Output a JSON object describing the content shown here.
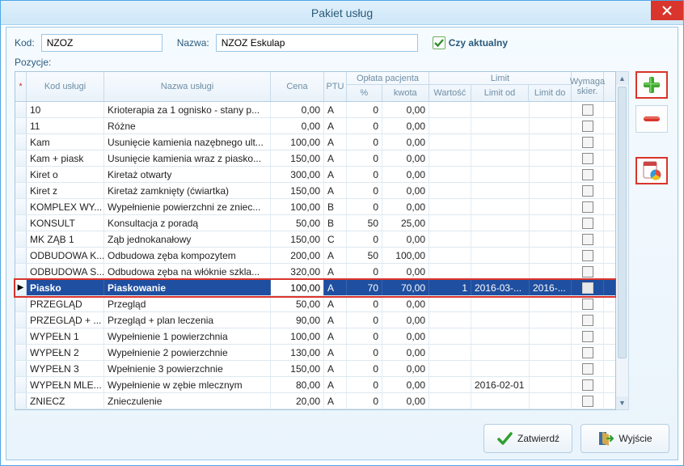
{
  "window": {
    "title": "Pakiet usług"
  },
  "form": {
    "kod_label": "Kod:",
    "kod_value": "NZOZ",
    "nazwa_label": "Nazwa:",
    "nazwa_value": "NZOZ Eskulap",
    "aktualny_label": "Czy aktualny",
    "aktualny_checked": true
  },
  "pozycje_label": "Pozycje:",
  "columns": {
    "kod": "Kod usługi",
    "nazwa": "Nazwa usługi",
    "cena": "Cena",
    "ptu": "PTU",
    "oplata": "Opłata pacjenta",
    "pct": "%",
    "kwota": "kwota",
    "limit": "Limit",
    "wartosc": "Wartość",
    "limit_od": "Limit od",
    "limit_do": "Limit do",
    "skier": "Wymaga skier."
  },
  "rows": [
    {
      "kod": "10",
      "nazwa": "Krioterapia za 1 ognisko - stany p...",
      "cena": "0,00",
      "ptu": "A",
      "pct": "0",
      "kw": "0,00",
      "war": "",
      "lod": "",
      "ldo": "",
      "sel": false
    },
    {
      "kod": "11",
      "nazwa": "Różne",
      "cena": "0,00",
      "ptu": "A",
      "pct": "0",
      "kw": "0,00",
      "war": "",
      "lod": "",
      "ldo": "",
      "sel": false
    },
    {
      "kod": "Kam",
      "nazwa": "Usunięcie kamienia nazębnego ult...",
      "cena": "100,00",
      "ptu": "A",
      "pct": "0",
      "kw": "0,00",
      "war": "",
      "lod": "",
      "ldo": "",
      "sel": false
    },
    {
      "kod": "Kam + piask",
      "nazwa": "Usunięcie kamienia wraz z piasko...",
      "cena": "150,00",
      "ptu": "A",
      "pct": "0",
      "kw": "0,00",
      "war": "",
      "lod": "",
      "ldo": "",
      "sel": false
    },
    {
      "kod": "Kiret o",
      "nazwa": "Kiretaż otwarty",
      "cena": "300,00",
      "ptu": "A",
      "pct": "0",
      "kw": "0,00",
      "war": "",
      "lod": "",
      "ldo": "",
      "sel": false
    },
    {
      "kod": "Kiret z",
      "nazwa": "Kiretaż zamknięty (ćwiartka)",
      "cena": "150,00",
      "ptu": "A",
      "pct": "0",
      "kw": "0,00",
      "war": "",
      "lod": "",
      "ldo": "",
      "sel": false
    },
    {
      "kod": "KOMPLEX WY...",
      "nazwa": "Wypełnienie powierzchni ze zniec...",
      "cena": "100,00",
      "ptu": "B",
      "pct": "0",
      "kw": "0,00",
      "war": "",
      "lod": "",
      "ldo": "",
      "sel": false
    },
    {
      "kod": "KONSULT",
      "nazwa": "Konsultacja z poradą",
      "cena": "50,00",
      "ptu": "B",
      "pct": "50",
      "kw": "25,00",
      "war": "",
      "lod": "",
      "ldo": "",
      "sel": false
    },
    {
      "kod": "MK ZĄB 1",
      "nazwa": "Ząb jednokanałowy",
      "cena": "150,00",
      "ptu": "C",
      "pct": "0",
      "kw": "0,00",
      "war": "",
      "lod": "",
      "ldo": "",
      "sel": false
    },
    {
      "kod": "ODBUDOWA K...",
      "nazwa": "Odbudowa zęba kompozytem",
      "cena": "200,00",
      "ptu": "A",
      "pct": "50",
      "kw": "100,00",
      "war": "",
      "lod": "",
      "ldo": "",
      "sel": false
    },
    {
      "kod": "ODBUDOWA S...",
      "nazwa": "Odbudowa zęba na włóknie szkla...",
      "cena": "320,00",
      "ptu": "A",
      "pct": "0",
      "kw": "0,00",
      "war": "",
      "lod": "",
      "ldo": "",
      "sel": false
    },
    {
      "kod": "Piasko",
      "nazwa": "Piaskowanie",
      "cena": "100,00",
      "ptu": "A",
      "pct": "70",
      "kw": "70,00",
      "war": "1",
      "lod": "2016-03-...",
      "ldo": "2016-...",
      "sel": true
    },
    {
      "kod": "PRZEGLĄD",
      "nazwa": "Przegląd",
      "cena": "50,00",
      "ptu": "A",
      "pct": "0",
      "kw": "0,00",
      "war": "",
      "lod": "",
      "ldo": "",
      "sel": false
    },
    {
      "kod": "PRZEGLĄD + ...",
      "nazwa": "Przegląd + plan leczenia",
      "cena": "90,00",
      "ptu": "A",
      "pct": "0",
      "kw": "0,00",
      "war": "",
      "lod": "",
      "ldo": "",
      "sel": false
    },
    {
      "kod": "WYPEŁN 1",
      "nazwa": "Wypełnienie 1 powierzchnia",
      "cena": "100,00",
      "ptu": "A",
      "pct": "0",
      "kw": "0,00",
      "war": "",
      "lod": "",
      "ldo": "",
      "sel": false
    },
    {
      "kod": "WYPEŁN 2",
      "nazwa": "Wypełnienie 2 powierzchnie",
      "cena": "130,00",
      "ptu": "A",
      "pct": "0",
      "kw": "0,00",
      "war": "",
      "lod": "",
      "ldo": "",
      "sel": false
    },
    {
      "kod": "WYPEŁN 3",
      "nazwa": "Wpełnienie 3 powierzchnie",
      "cena": "150,00",
      "ptu": "A",
      "pct": "0",
      "kw": "0,00",
      "war": "",
      "lod": "",
      "ldo": "",
      "sel": false
    },
    {
      "kod": "WYPEŁN MLE...",
      "nazwa": "Wypełnienie w zębie mlecznym",
      "cena": "80,00",
      "ptu": "A",
      "pct": "0",
      "kw": "0,00",
      "war": "",
      "lod": "2016-02-01",
      "ldo": "",
      "sel": false
    },
    {
      "kod": "ZNIECZ",
      "nazwa": "Znieczulenie",
      "cena": "20,00",
      "ptu": "A",
      "pct": "0",
      "kw": "0,00",
      "war": "",
      "lod": "",
      "ldo": "",
      "sel": false
    }
  ],
  "buttons": {
    "zatwierdz": "Zatwierdź",
    "wyjscie": "Wyjście"
  },
  "colors": {
    "sel_bg": "#1f4fa0",
    "accent_red": "#d9352c",
    "titlebar_from": "#dff0fb",
    "titlebar_to": "#cfe7f8"
  }
}
